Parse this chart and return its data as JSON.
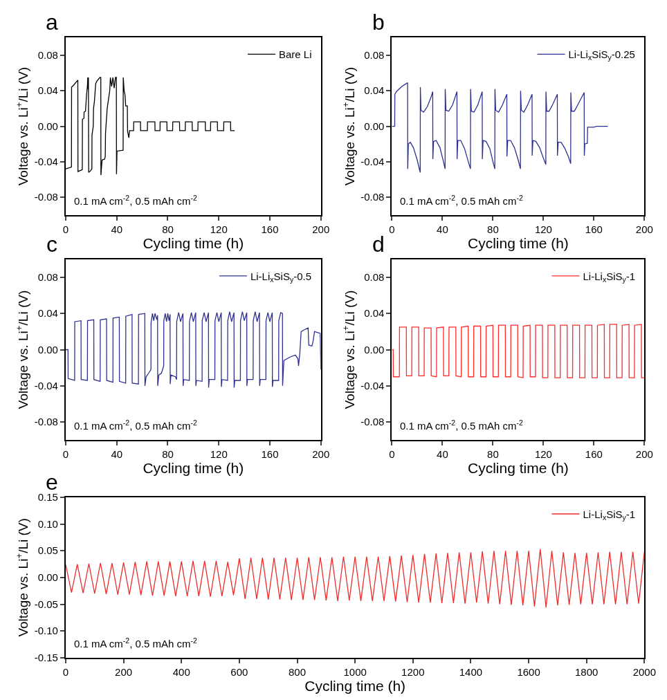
{
  "chart_data": [
    {
      "type": "line",
      "title": "a",
      "xlabel": "Cycling time (h)",
      "ylabel": "Voltage vs. Li$^{+}$/Li (V)",
      "annotations": [
        "0.1 mA cm$^{-2}$, 0.5 mAh cm$^{-2}$"
      ],
      "xlim": [
        0,
        200
      ],
      "xticks": [
        0,
        40,
        80,
        120,
        160,
        200
      ],
      "ylim": [
        -0.1,
        0.1
      ],
      "yticks": [
        -0.08,
        -0.04,
        {
          "value": 0,
          "label": "0.00"
        },
        0.04,
        0.08
      ],
      "legend": "top right",
      "x": [
        0,
        4.5,
        4.6,
        6,
        9.5,
        9.6,
        13,
        13.1,
        14.3,
        14.4,
        15.5,
        16.3,
        17,
        17.3,
        17.5,
        17.8,
        18,
        19.6,
        20.5,
        20.6,
        21.6,
        21.8,
        22.5,
        23.5,
        24.5,
        26.8,
        27.5,
        27.6,
        28.5,
        30.5,
        31,
        31.2,
        32.5,
        33.5,
        34.5,
        35,
        36,
        37,
        38,
        39,
        39.7,
        39.8,
        40.2,
        45,
        45.1,
        45.8,
        46.5,
        47,
        48.3,
        48.5,
        49.5,
        50,
        53.2,
        53.3,
        58.6,
        58.7,
        64,
        64.1,
        69.9,
        70,
        73.9,
        74,
        79.3,
        79.4,
        83.8,
        83.9,
        89.2,
        89.3,
        93.7,
        93.8,
        99.1,
        99.2,
        103.6,
        103.7,
        109.4,
        109.5,
        113.5,
        113.6,
        118.9,
        119,
        123.8,
        123.9,
        129.2,
        129.3,
        132.4
      ],
      "series": [
        {
          "name": "Bare Li",
          "color": "#000000",
          "values": [
            -0.048,
            -0.046,
            0.044,
            0.046,
            0.052,
            -0.051,
            -0.049,
            0.008,
            0.009,
            0.016,
            0.017,
            0.035,
            0.045,
            0.055,
            0.042,
            0.055,
            -0.052,
            -0.05,
            -0.048,
            -0.01,
            0.0,
            0.02,
            0.028,
            0.048,
            0.051,
            0.055,
            0.055,
            -0.055,
            -0.038,
            -0.037,
            -0.034,
            -0.008,
            0.02,
            0.03,
            0.04,
            0.055,
            0.045,
            0.055,
            0.043,
            0.055,
            0.055,
            -0.054,
            -0.028,
            -0.027,
            0.055,
            0.04,
            0.035,
            0.023,
            0.023,
            -0.006,
            -0.013,
            -0.005,
            -0.005,
            0.005,
            0.005,
            -0.005,
            -0.005,
            0.005,
            0.005,
            -0.005,
            -0.005,
            0.005,
            0.005,
            -0.005,
            -0.005,
            0.005,
            0.005,
            -0.005,
            -0.005,
            0.005,
            0.005,
            -0.005,
            -0.005,
            0.005,
            0.005,
            -0.005,
            -0.005,
            0.005,
            0.005,
            -0.005,
            -0.005,
            0.005,
            0.005,
            -0.005,
            -0.005
          ]
        }
      ]
    },
    {
      "type": "line",
      "title": "b",
      "xlabel": "Cycling time (h)",
      "ylabel": "Voltage vs. Li$^{+}$/Li (V)",
      "annotations": [
        "0.1 mA cm$^{-2}$, 0.5 mAh cm$^{-2}$"
      ],
      "xlim": [
        0,
        200
      ],
      "xticks": [
        0,
        40,
        80,
        120,
        160,
        200
      ],
      "ylim": [
        -0.1,
        0.1
      ],
      "yticks": [
        -0.08,
        -0.04,
        {
          "value": 0,
          "label": "0.00"
        },
        0.04,
        0.08
      ],
      "legend": "top right",
      "x": [
        0,
        2.2,
        2.3,
        3.5,
        8,
        12.4,
        12.5,
        13,
        14.5,
        17,
        20,
        22.4,
        22.5,
        23,
        25,
        28,
        31,
        32.3,
        32.4,
        33,
        35,
        38,
        40.5,
        42.1,
        42.2,
        42.8,
        45,
        48,
        51.5,
        51.6,
        52.2,
        54.5,
        57.5,
        60.5,
        62.2,
        62.3,
        62.9,
        65,
        68,
        71.5,
        71.6,
        72.2,
        74.5,
        77.5,
        80,
        81.5,
        81.6,
        82.2,
        84.5,
        87.5,
        91,
        91.1,
        91.7,
        94,
        97,
        100,
        101.8,
        101.9,
        102.5,
        104.5,
        107.5,
        111,
        111.1,
        111.7,
        114,
        117,
        120,
        121.9,
        122,
        122.6,
        124.5,
        127.5,
        131,
        131.1,
        131.7,
        134,
        137,
        140,
        141.6,
        141.7,
        142.3,
        144.5,
        147.5,
        152.3,
        152.4,
        152.8,
        154.8,
        155,
        160,
        162,
        171
      ],
      "series": [
        {
          "name": "Li-Li$_{x}$SiS$_{y}$-0.25",
          "color": "#2e3192",
          "values": [
            0,
            0,
            0.036,
            0.039,
            0.045,
            0.049,
            -0.048,
            -0.02,
            -0.018,
            -0.024,
            -0.038,
            -0.052,
            0.044,
            0.018,
            0.016,
            0.022,
            0.033,
            0.039,
            -0.037,
            -0.017,
            -0.016,
            -0.024,
            -0.038,
            -0.048,
            0.042,
            0.018,
            0.017,
            0.024,
            0.039,
            -0.037,
            -0.016,
            -0.016,
            -0.025,
            -0.04,
            -0.048,
            0.042,
            0.017,
            0.016,
            0.024,
            0.039,
            -0.037,
            -0.016,
            -0.017,
            -0.025,
            -0.04,
            -0.048,
            0.042,
            0.018,
            0.016,
            0.024,
            0.036,
            -0.034,
            -0.016,
            -0.016,
            -0.024,
            -0.038,
            -0.048,
            0.04,
            0.018,
            0.016,
            0.024,
            0.036,
            -0.033,
            -0.016,
            -0.017,
            -0.024,
            -0.036,
            -0.043,
            0.039,
            0.017,
            0.017,
            0.025,
            0.036,
            -0.033,
            -0.018,
            -0.018,
            -0.025,
            -0.035,
            -0.042,
            0.038,
            0.017,
            0.017,
            0.025,
            0.038,
            -0.033,
            -0.02,
            -0.019,
            -0.001,
            -0.001,
            0,
            0
          ]
        }
      ]
    },
    {
      "type": "line",
      "title": "c",
      "xlabel": "Cycling time (h)",
      "ylabel": "Voltage vs. Li$^{+}$/Li (V)",
      "annotations": [
        "0.1 mA cm$^{-2}$, 0.5 mAh cm$^{-2}$"
      ],
      "xlim": [
        0,
        200
      ],
      "xticks": [
        0,
        40,
        80,
        120,
        160,
        200
      ],
      "ylim": [
        -0.1,
        0.1
      ],
      "yticks": [
        -0.08,
        -0.04,
        {
          "value": 0,
          "label": "0.00"
        },
        0.04,
        0.08
      ],
      "legend": "top right",
      "x": [
        0,
        1.8,
        1.9,
        7,
        7.1,
        12,
        12.1,
        17,
        17.1,
        22,
        22.1,
        27,
        27.1,
        32,
        32.1,
        37,
        37.1,
        42,
        42.1,
        47,
        47.1,
        52,
        52.1,
        57,
        57.1,
        62,
        62.1,
        63,
        65,
        66.8,
        66.9,
        68,
        69,
        70,
        71.5,
        72,
        72.1,
        73,
        75,
        76.8,
        76.9,
        78,
        79,
        80,
        81,
        81.8,
        81.9,
        82.5,
        86,
        86.9,
        87,
        88.5,
        90,
        91.9,
        92,
        92.5,
        96.9,
        97,
        98.5,
        100,
        101.9,
        102,
        102.5,
        106.9,
        107,
        108.5,
        110,
        111.9,
        112,
        112.5,
        116.9,
        117,
        118.5,
        120,
        121.9,
        122,
        122.5,
        126.9,
        127,
        128.5,
        130,
        131.9,
        132,
        132.5,
        136.9,
        137,
        138.5,
        140,
        141.9,
        142,
        142.5,
        146.9,
        147,
        148.5,
        150,
        151.9,
        152,
        152.5,
        156.9,
        157,
        158.5,
        160,
        161.9,
        162,
        162.5,
        166.9,
        167,
        168.5,
        169.9,
        170,
        171,
        176,
        180,
        182,
        182.5,
        183.5,
        184.5,
        187,
        190,
        190.5,
        193,
        194,
        195,
        199.5,
        200
      ],
      "series": [
        {
          "name": "Li-Li$_{x}$SiS$_{y}$-0.5",
          "color": "#2e3192",
          "values": [
            0,
            0,
            -0.032,
            -0.034,
            0.031,
            0.032,
            -0.033,
            -0.034,
            0.032,
            0.033,
            -0.033,
            -0.035,
            0.033,
            0.034,
            -0.034,
            -0.036,
            0.035,
            0.036,
            -0.035,
            -0.037,
            0.037,
            0.039,
            -0.037,
            -0.038,
            0.039,
            0.04,
            -0.04,
            -0.03,
            -0.026,
            -0.022,
            0.03,
            0.04,
            0.032,
            0.04,
            0.033,
            0.038,
            -0.04,
            -0.028,
            -0.026,
            -0.018,
            0.032,
            0.04,
            0.031,
            0.04,
            0.032,
            0.039,
            -0.038,
            -0.028,
            -0.03,
            -0.033,
            0.031,
            0.041,
            0.031,
            0.04,
            -0.04,
            -0.033,
            -0.034,
            0.031,
            0.041,
            0.031,
            0.041,
            -0.04,
            -0.034,
            -0.035,
            0.032,
            0.041,
            0.031,
            0.041,
            -0.042,
            -0.033,
            -0.033,
            0.032,
            0.041,
            0.031,
            0.041,
            -0.041,
            -0.033,
            -0.034,
            0.032,
            0.042,
            0.031,
            0.041,
            -0.042,
            -0.034,
            -0.034,
            0.032,
            0.042,
            0.032,
            0.041,
            -0.04,
            -0.033,
            -0.033,
            0.032,
            0.042,
            0.031,
            0.041,
            -0.04,
            -0.033,
            -0.033,
            0.032,
            0.041,
            0.031,
            0.041,
            -0.041,
            -0.034,
            -0.034,
            0.032,
            0.041,
            0.04,
            -0.04,
            -0.012,
            -0.008,
            -0.006,
            -0.01,
            -0.018,
            -0.004,
            0.02,
            0.022,
            0.024,
            0.005,
            0.004,
            0.01,
            0.02,
            0.018,
            -0.022
          ]
        }
      ]
    },
    {
      "type": "line",
      "title": "d",
      "xlabel": "Cycling time (h)",
      "ylabel": "Voltage vs. Li$^{+}$/Li (V)",
      "annotations": [
        "0.1 mA cm$^{-2}$, 0.5 mAh cm$^{-2}$"
      ],
      "xlim": [
        0,
        200
      ],
      "xticks": [
        0,
        40,
        80,
        120,
        160,
        200
      ],
      "ylim": [
        -0.1,
        0.1
      ],
      "yticks": [
        -0.08,
        -0.04,
        {
          "value": 0,
          "label": "0.00"
        },
        0.04,
        0.08
      ],
      "legend": "top right",
      "x": [
        0,
        1,
        1.1,
        5.9,
        6,
        11.4,
        11.5,
        15.7,
        15.8,
        21.2,
        21.3,
        25.5,
        25.6,
        31,
        31.1,
        35.3,
        35.4,
        40.8,
        40.9,
        45.1,
        45.2,
        50.6,
        50.7,
        54.9,
        55,
        60.4,
        60.5,
        64.7,
        64.8,
        70.2,
        70.3,
        74.5,
        74.6,
        80,
        80.1,
        84.3,
        84.4,
        89.8,
        89.9,
        94.1,
        94.2,
        99.6,
        99.7,
        103.9,
        104,
        109.4,
        109.5,
        113.7,
        113.8,
        119.2,
        119.3,
        123.5,
        123.6,
        129,
        129.1,
        133.3,
        133.4,
        138.8,
        138.9,
        143.1,
        143.2,
        148.6,
        148.7,
        152.9,
        153,
        158.4,
        158.5,
        162.7,
        162.8,
        168.2,
        168.3,
        172.5,
        172.6,
        178,
        178.1,
        182.3,
        182.4,
        187.8,
        187.9,
        192.1,
        192.2,
        197.6,
        197.7,
        200
      ],
      "series": [
        {
          "name": "Li-Li$_{x}$SiS$_{y}$-1",
          "color": "#ff2a2a",
          "values": [
            0,
            0,
            -0.03,
            -0.03,
            0.025,
            0.025,
            -0.029,
            -0.029,
            0.025,
            0.025,
            -0.029,
            -0.029,
            0.024,
            0.024,
            -0.029,
            -0.03,
            0.024,
            0.025,
            -0.029,
            -0.029,
            0.025,
            0.025,
            -0.029,
            -0.03,
            0.025,
            0.026,
            -0.03,
            -0.03,
            0.026,
            0.026,
            -0.03,
            -0.03,
            0.026,
            0.027,
            -0.03,
            -0.03,
            0.027,
            0.027,
            -0.03,
            -0.03,
            0.027,
            0.027,
            -0.03,
            -0.031,
            0.026,
            0.027,
            -0.03,
            -0.03,
            0.027,
            0.027,
            -0.031,
            -0.031,
            0.027,
            0.027,
            -0.031,
            -0.031,
            0.027,
            0.027,
            -0.031,
            -0.031,
            0.027,
            0.027,
            -0.031,
            -0.031,
            0.027,
            0.027,
            -0.031,
            -0.031,
            0.027,
            0.028,
            -0.031,
            -0.031,
            0.028,
            0.028,
            -0.031,
            -0.031,
            0.027,
            0.028,
            -0.031,
            -0.031,
            0.027,
            0.028,
            -0.031,
            -0.031
          ]
        }
      ]
    },
    {
      "type": "line",
      "title": "e",
      "xlabel": "Cycling time (h)",
      "ylabel": "Voltage vs. Li$^{+}$/Li (V)",
      "annotations": [
        "0.1 mA cm$^{-2}$, 0.5 mAh cm$^{-2}$"
      ],
      "xlim": [
        0,
        2000
      ],
      "xticks": [
        0,
        200,
        400,
        600,
        800,
        1000,
        1200,
        1400,
        1600,
        1800,
        2000
      ],
      "ylim": [
        -0.15,
        0.15
      ],
      "yticks": [
        -0.15,
        {
          "value": -0.1,
          "label": "-0.10"
        },
        -0.05,
        {
          "value": 0,
          "label": "0.00"
        },
        0.05,
        {
          "value": 0.1,
          "label": "0.10"
        },
        0.15
      ],
      "legend": "top right",
      "x": [
        0,
        20,
        40,
        60,
        80,
        100,
        120,
        140,
        160,
        180,
        200,
        220,
        240,
        260,
        280,
        300,
        320,
        340,
        360,
        380,
        400,
        420,
        440,
        460,
        480,
        500,
        520,
        540,
        560,
        580,
        600,
        620,
        640,
        660,
        680,
        700,
        720,
        740,
        760,
        780,
        800,
        820,
        840,
        860,
        880,
        900,
        920,
        940,
        960,
        980,
        1000,
        1020,
        1040,
        1060,
        1080,
        1100,
        1120,
        1140,
        1160,
        1180,
        1200,
        1220,
        1240,
        1260,
        1280,
        1300,
        1320,
        1340,
        1360,
        1380,
        1400,
        1420,
        1440,
        1460,
        1480,
        1500,
        1520,
        1540,
        1560,
        1580,
        1600,
        1620,
        1640,
        1660,
        1680,
        1700,
        1720,
        1740,
        1760,
        1780,
        1800,
        1820,
        1840,
        1860,
        1880,
        1900,
        1920,
        1940,
        1960,
        1980,
        2000
      ],
      "series": [
        {
          "name": "Li-Li$_{x}$SiS$_{y}$-1",
          "color": "#ee2b2b",
          "values": [
            0.024,
            -0.028,
            0.025,
            -0.029,
            0.026,
            -0.03,
            0.027,
            -0.031,
            0.027,
            -0.032,
            0.028,
            -0.032,
            0.029,
            -0.033,
            0.03,
            -0.034,
            0.03,
            -0.034,
            0.03,
            -0.035,
            0.03,
            -0.035,
            0.031,
            -0.035,
            0.031,
            -0.036,
            0.031,
            -0.035,
            0.029,
            -0.033,
            0.036,
            -0.04,
            0.037,
            -0.04,
            0.037,
            -0.041,
            0.037,
            -0.041,
            0.037,
            -0.042,
            0.037,
            -0.042,
            0.038,
            -0.042,
            0.038,
            -0.043,
            0.038,
            -0.044,
            0.039,
            -0.043,
            0.039,
            -0.044,
            0.039,
            -0.044,
            0.039,
            -0.044,
            0.04,
            -0.045,
            0.041,
            -0.046,
            0.042,
            -0.047,
            0.044,
            -0.047,
            0.045,
            -0.048,
            0.046,
            -0.048,
            0.047,
            -0.049,
            0.047,
            -0.047,
            0.049,
            -0.049,
            0.05,
            -0.05,
            0.05,
            -0.051,
            0.05,
            -0.052,
            0.05,
            -0.054,
            0.053,
            -0.056,
            0.05,
            -0.052,
            0.047,
            -0.051,
            0.046,
            -0.05,
            0.046,
            -0.05,
            0.047,
            -0.05,
            0.048,
            -0.05,
            0.048,
            -0.05,
            0.048,
            -0.049,
            0.048
          ]
        }
      ]
    }
  ]
}
